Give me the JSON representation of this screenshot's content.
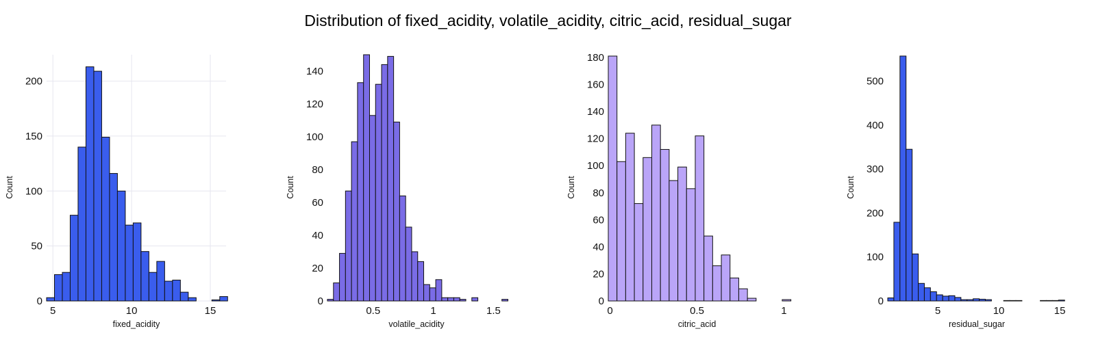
{
  "title": "Distribution of fixed_acidity, volatile_acidity, citric_acid, residual_sugar",
  "chart_data": [
    {
      "type": "bar",
      "subtype": "histogram",
      "xlabel": "fixed_acidity",
      "ylabel": "Count",
      "color": "#3a5ded",
      "grid": true,
      "xlim": [
        4.6,
        16.0
      ],
      "ylim": [
        0,
        224
      ],
      "xticks": [
        5,
        10,
        15
      ],
      "yticks": [
        0,
        50,
        100,
        150,
        200
      ],
      "bin_width": 0.5,
      "bin_start": 4.6,
      "values": [
        3,
        24,
        26,
        78,
        140,
        213,
        209,
        149,
        116,
        100,
        69,
        71,
        45,
        26,
        36,
        18,
        19,
        8,
        3,
        0,
        0,
        1,
        4
      ]
    },
    {
      "type": "bar",
      "subtype": "histogram",
      "xlabel": "volatile_acidity",
      "ylabel": "Count",
      "color": "#7a6ce6",
      "grid": false,
      "xlim": [
        0.12,
        1.6
      ],
      "ylim": [
        0,
        150
      ],
      "xticks": [
        0.5,
        1,
        1.5
      ],
      "yticks": [
        0,
        20,
        40,
        60,
        80,
        100,
        120,
        140
      ],
      "bin_width": 0.05,
      "bin_start": 0.12,
      "values": [
        1,
        11,
        29,
        67,
        97,
        133,
        150,
        113,
        132,
        144,
        149,
        109,
        64,
        45,
        30,
        24,
        10,
        8,
        13,
        2,
        2,
        2,
        1,
        0,
        2,
        0,
        0,
        0,
        0,
        1
      ]
    },
    {
      "type": "bar",
      "subtype": "histogram",
      "xlabel": "citric_acid",
      "ylabel": "Count",
      "color": "#baa5f8",
      "grid": false,
      "xlim": [
        -0.01,
        1.01
      ],
      "ylim": [
        0,
        182
      ],
      "xticks": [
        0,
        0.5,
        1
      ],
      "yticks": [
        0,
        20,
        40,
        60,
        80,
        100,
        120,
        140,
        160,
        180
      ],
      "bin_width": 0.05,
      "bin_start": -0.01,
      "values": [
        181,
        103,
        124,
        72,
        106,
        130,
        112,
        89,
        99,
        83,
        122,
        48,
        26,
        34,
        17,
        9,
        2,
        0,
        0,
        0,
        1
      ]
    },
    {
      "type": "bar",
      "subtype": "histogram",
      "xlabel": "residual_sugar",
      "ylabel": "Count",
      "color": "#3a5ded",
      "grid": false,
      "xlim": [
        0.9,
        15.5
      ],
      "ylim": [
        0,
        560
      ],
      "xticks": [
        5,
        10,
        15
      ],
      "yticks": [
        0,
        100,
        200,
        300,
        400,
        500
      ],
      "bin_width": 0.5,
      "bin_start": 0.9,
      "values": [
        7,
        179,
        557,
        345,
        107,
        40,
        30,
        21,
        14,
        11,
        12,
        8,
        3,
        3,
        5,
        4,
        3,
        0,
        0,
        1,
        1,
        1,
        0,
        0,
        0,
        1,
        1,
        1,
        2
      ]
    }
  ]
}
